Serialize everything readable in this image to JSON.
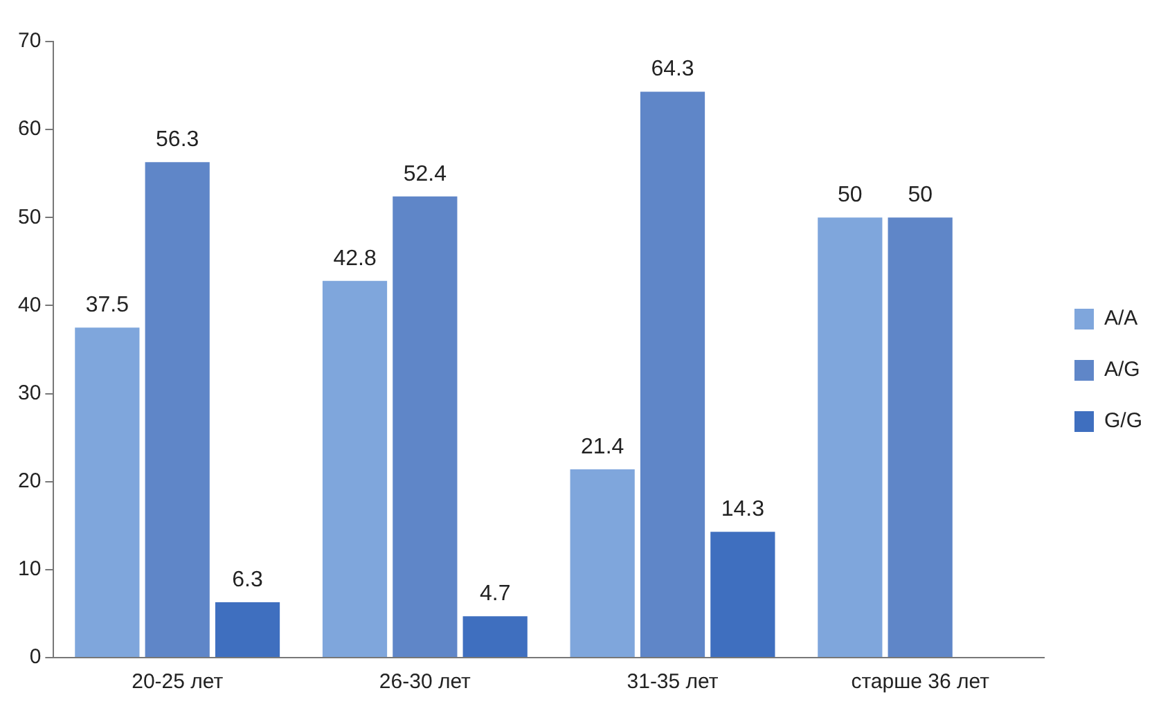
{
  "chart_data": {
    "type": "bar",
    "categories": [
      "20-25 лет",
      "26-30 лет",
      "31-35 лет",
      "старше 36 лет"
    ],
    "series": [
      {
        "name": "A/A",
        "color": "#7fa6dc",
        "values": [
          37.5,
          42.8,
          21.4,
          50
        ]
      },
      {
        "name": "A/G",
        "color": "#5f86c8",
        "values": [
          56.3,
          52.4,
          64.3,
          50
        ]
      },
      {
        "name": "G/G",
        "color": "#3f6fbf",
        "values": [
          6.3,
          4.7,
          14.3,
          null
        ]
      }
    ],
    "ylim": [
      0,
      70
    ],
    "yticks": [
      0,
      10,
      20,
      30,
      40,
      50,
      60,
      70
    ],
    "grid": false,
    "legend": "right",
    "data_labels": true
  }
}
